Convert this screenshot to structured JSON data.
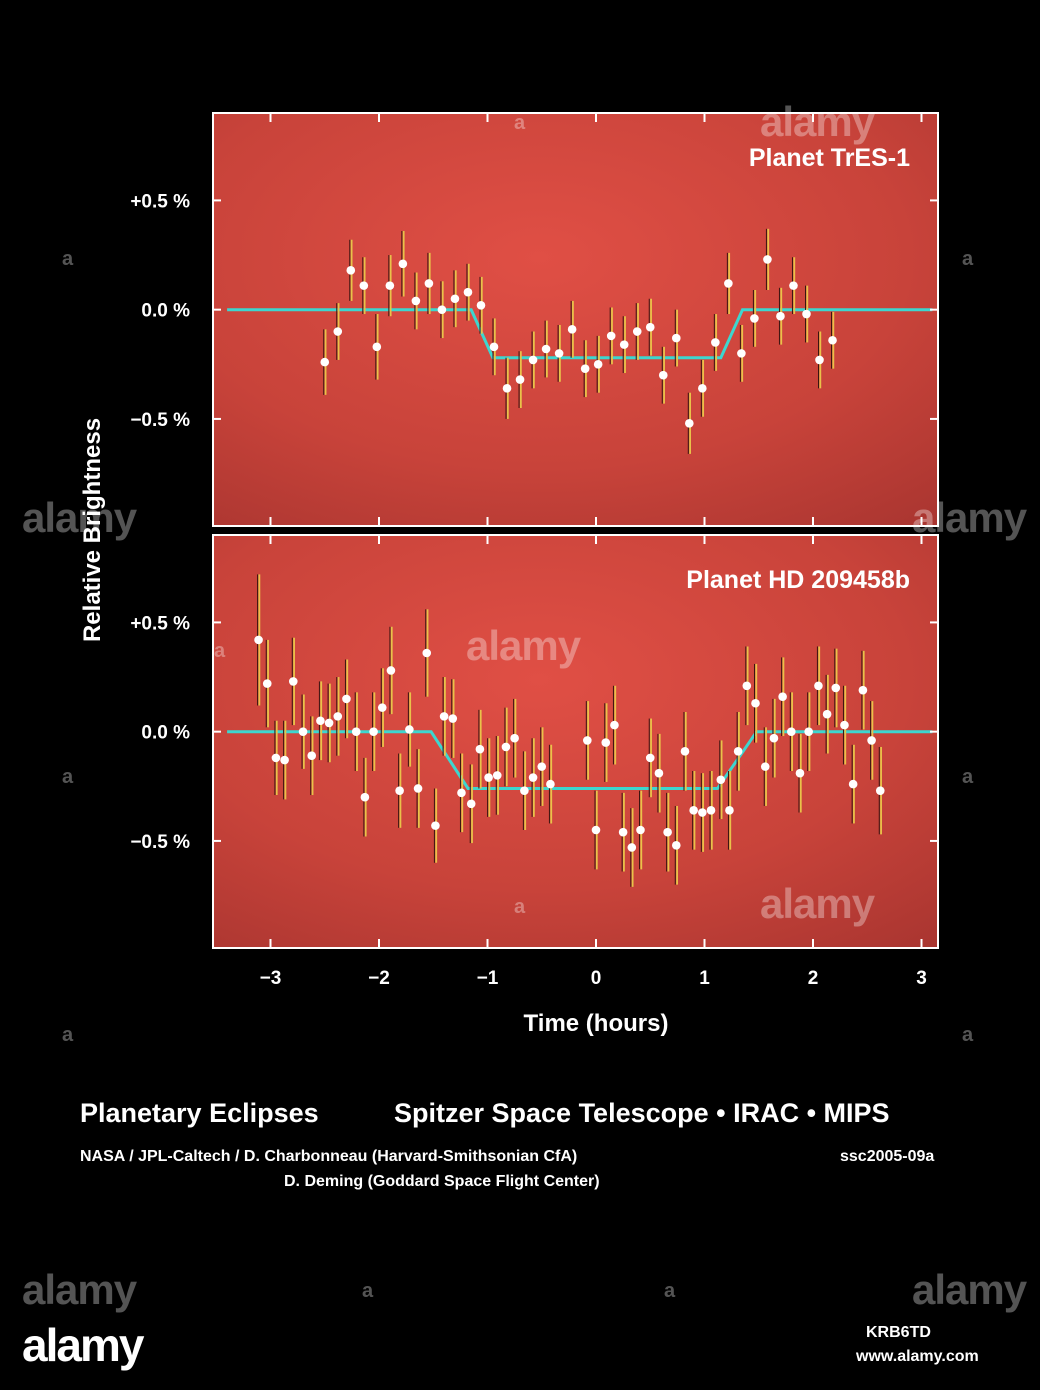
{
  "chart_data": {
    "type": "scatter",
    "ylabel": "Relative Brightness",
    "xlabel": "Time (hours)",
    "xlim": [
      -3.5,
      3.15
    ],
    "x_ticks": [
      -3,
      -2,
      -1,
      0,
      1,
      2,
      3
    ],
    "x_tick_labels": [
      "−3",
      "−2",
      "−1",
      "0",
      "1",
      "2",
      "3"
    ],
    "colors": {
      "background": "#000000",
      "panel": "#c8433a",
      "model": "#3dd6cf",
      "errorbar": "#e9c24a",
      "point": "#ffffff"
    },
    "panels": [
      {
        "title": "Planet TrES-1",
        "ylim": [
          -0.99,
          0.9
        ],
        "y_ticks": [
          0.5,
          0.0,
          -0.5
        ],
        "y_tick_labels": [
          "+0.5 %",
          "0.0 %",
          "−0.5 %"
        ],
        "model": {
          "x": [
            -3.4,
            -1.15,
            -0.95,
            1.15,
            1.35,
            3.1
          ],
          "y": [
            0.0,
            0.0,
            -0.22,
            -0.22,
            0.0,
            0.0
          ]
        },
        "points": [
          {
            "x": -2.5,
            "y": -0.24,
            "err": 0.15
          },
          {
            "x": -2.38,
            "y": -0.1,
            "err": 0.13
          },
          {
            "x": -2.26,
            "y": 0.18,
            "err": 0.14
          },
          {
            "x": -2.14,
            "y": 0.11,
            "err": 0.13
          },
          {
            "x": -2.02,
            "y": -0.17,
            "err": 0.15
          },
          {
            "x": -1.9,
            "y": 0.11,
            "err": 0.14
          },
          {
            "x": -1.78,
            "y": 0.21,
            "err": 0.15
          },
          {
            "x": -1.66,
            "y": 0.04,
            "err": 0.13
          },
          {
            "x": -1.54,
            "y": 0.12,
            "err": 0.14
          },
          {
            "x": -1.42,
            "y": 0.0,
            "err": 0.13
          },
          {
            "x": -1.3,
            "y": 0.05,
            "err": 0.13
          },
          {
            "x": -1.18,
            "y": 0.08,
            "err": 0.13
          },
          {
            "x": -1.06,
            "y": 0.02,
            "err": 0.13
          },
          {
            "x": -0.94,
            "y": -0.17,
            "err": 0.13
          },
          {
            "x": -0.82,
            "y": -0.36,
            "err": 0.14
          },
          {
            "x": -0.7,
            "y": -0.32,
            "err": 0.13
          },
          {
            "x": -0.58,
            "y": -0.23,
            "err": 0.13
          },
          {
            "x": -0.46,
            "y": -0.18,
            "err": 0.13
          },
          {
            "x": -0.34,
            "y": -0.2,
            "err": 0.13
          },
          {
            "x": -0.22,
            "y": -0.09,
            "err": 0.13
          },
          {
            "x": -0.1,
            "y": -0.27,
            "err": 0.13
          },
          {
            "x": 0.02,
            "y": -0.25,
            "err": 0.13
          },
          {
            "x": 0.14,
            "y": -0.12,
            "err": 0.13
          },
          {
            "x": 0.26,
            "y": -0.16,
            "err": 0.13
          },
          {
            "x": 0.38,
            "y": -0.1,
            "err": 0.13
          },
          {
            "x": 0.5,
            "y": -0.08,
            "err": 0.13
          },
          {
            "x": 0.62,
            "y": -0.3,
            "err": 0.13
          },
          {
            "x": 0.74,
            "y": -0.13,
            "err": 0.13
          },
          {
            "x": 0.86,
            "y": -0.52,
            "err": 0.14
          },
          {
            "x": 0.98,
            "y": -0.36,
            "err": 0.13
          },
          {
            "x": 1.1,
            "y": -0.15,
            "err": 0.13
          },
          {
            "x": 1.22,
            "y": 0.12,
            "err": 0.14
          },
          {
            "x": 1.34,
            "y": -0.2,
            "err": 0.13
          },
          {
            "x": 1.46,
            "y": -0.04,
            "err": 0.13
          },
          {
            "x": 1.58,
            "y": 0.23,
            "err": 0.14
          },
          {
            "x": 1.7,
            "y": -0.03,
            "err": 0.13
          },
          {
            "x": 1.82,
            "y": 0.11,
            "err": 0.13
          },
          {
            "x": 1.94,
            "y": -0.02,
            "err": 0.13
          },
          {
            "x": 2.06,
            "y": -0.23,
            "err": 0.13
          },
          {
            "x": 2.18,
            "y": -0.14,
            "err": 0.13
          }
        ]
      },
      {
        "title": "Planet HD 209458b",
        "ylim": [
          -0.99,
          0.9
        ],
        "y_ticks": [
          0.5,
          0.0,
          -0.5
        ],
        "y_tick_labels": [
          "+0.5 %",
          "0.0 %",
          "−0.5 %"
        ],
        "model": {
          "x": [
            -3.4,
            -1.52,
            -1.18,
            1.12,
            1.48,
            3.1
          ],
          "y": [
            0.0,
            0.0,
            -0.26,
            -0.26,
            0.0,
            0.0
          ]
        },
        "points": [
          {
            "x": -3.11,
            "y": 0.42,
            "err": 0.3
          },
          {
            "x": -3.03,
            "y": 0.22,
            "err": 0.2
          },
          {
            "x": -2.95,
            "y": -0.12,
            "err": 0.17
          },
          {
            "x": -2.87,
            "y": -0.13,
            "err": 0.18
          },
          {
            "x": -2.79,
            "y": 0.23,
            "err": 0.2
          },
          {
            "x": -2.7,
            "y": 0.0,
            "err": 0.17
          },
          {
            "x": -2.62,
            "y": -0.11,
            "err": 0.18
          },
          {
            "x": -2.54,
            "y": 0.05,
            "err": 0.18
          },
          {
            "x": -2.46,
            "y": 0.04,
            "err": 0.18
          },
          {
            "x": -2.38,
            "y": 0.07,
            "err": 0.18
          },
          {
            "x": -2.3,
            "y": 0.15,
            "err": 0.18
          },
          {
            "x": -2.21,
            "y": 0.0,
            "err": 0.18
          },
          {
            "x": -2.13,
            "y": -0.3,
            "err": 0.18
          },
          {
            "x": -2.05,
            "y": 0.0,
            "err": 0.18
          },
          {
            "x": -1.97,
            "y": 0.11,
            "err": 0.18
          },
          {
            "x": -1.89,
            "y": 0.28,
            "err": 0.2
          },
          {
            "x": -1.81,
            "y": -0.27,
            "err": 0.17
          },
          {
            "x": -1.72,
            "y": 0.01,
            "err": 0.17
          },
          {
            "x": -1.64,
            "y": -0.26,
            "err": 0.18
          },
          {
            "x": -1.56,
            "y": 0.36,
            "err": 0.2
          },
          {
            "x": -1.48,
            "y": -0.43,
            "err": 0.17
          },
          {
            "x": -1.4,
            "y": 0.07,
            "err": 0.18
          },
          {
            "x": -1.32,
            "y": 0.06,
            "err": 0.18
          },
          {
            "x": -1.24,
            "y": -0.28,
            "err": 0.18
          },
          {
            "x": -1.15,
            "y": -0.33,
            "err": 0.18
          },
          {
            "x": -1.07,
            "y": -0.08,
            "err": 0.18
          },
          {
            "x": -0.99,
            "y": -0.21,
            "err": 0.18
          },
          {
            "x": -0.91,
            "y": -0.2,
            "err": 0.18
          },
          {
            "x": -0.83,
            "y": -0.07,
            "err": 0.18
          },
          {
            "x": -0.75,
            "y": -0.03,
            "err": 0.18
          },
          {
            "x": -0.66,
            "y": -0.27,
            "err": 0.18
          },
          {
            "x": -0.58,
            "y": -0.21,
            "err": 0.18
          },
          {
            "x": -0.5,
            "y": -0.16,
            "err": 0.18
          },
          {
            "x": -0.42,
            "y": -0.24,
            "err": 0.18
          },
          {
            "x": -0.08,
            "y": -0.04,
            "err": 0.18
          },
          {
            "x": 0.0,
            "y": -0.45,
            "err": 0.18
          },
          {
            "x": 0.09,
            "y": -0.05,
            "err": 0.18
          },
          {
            "x": 0.17,
            "y": 0.03,
            "err": 0.18
          },
          {
            "x": 0.25,
            "y": -0.46,
            "err": 0.18
          },
          {
            "x": 0.33,
            "y": -0.53,
            "err": 0.18
          },
          {
            "x": 0.41,
            "y": -0.45,
            "err": 0.18
          },
          {
            "x": 0.5,
            "y": -0.12,
            "err": 0.18
          },
          {
            "x": 0.58,
            "y": -0.19,
            "err": 0.18
          },
          {
            "x": 0.66,
            "y": -0.46,
            "err": 0.18
          },
          {
            "x": 0.74,
            "y": -0.52,
            "err": 0.18
          },
          {
            "x": 0.82,
            "y": -0.09,
            "err": 0.18
          },
          {
            "x": 0.9,
            "y": -0.36,
            "err": 0.18
          },
          {
            "x": 0.98,
            "y": -0.37,
            "err": 0.18
          },
          {
            "x": 1.06,
            "y": -0.36,
            "err": 0.18
          },
          {
            "x": 1.15,
            "y": -0.22,
            "err": 0.18
          },
          {
            "x": 1.23,
            "y": -0.36,
            "err": 0.18
          },
          {
            "x": 1.31,
            "y": -0.09,
            "err": 0.18
          },
          {
            "x": 1.39,
            "y": 0.21,
            "err": 0.18
          },
          {
            "x": 1.47,
            "y": 0.13,
            "err": 0.18
          },
          {
            "x": 1.56,
            "y": -0.16,
            "err": 0.18
          },
          {
            "x": 1.64,
            "y": -0.03,
            "err": 0.18
          },
          {
            "x": 1.72,
            "y": 0.16,
            "err": 0.18
          },
          {
            "x": 1.8,
            "y": 0.0,
            "err": 0.18
          },
          {
            "x": 1.88,
            "y": -0.19,
            "err": 0.18
          },
          {
            "x": 1.96,
            "y": 0.0,
            "err": 0.18
          },
          {
            "x": 2.05,
            "y": 0.21,
            "err": 0.18
          },
          {
            "x": 2.13,
            "y": 0.08,
            "err": 0.18
          },
          {
            "x": 2.21,
            "y": 0.2,
            "err": 0.18
          },
          {
            "x": 2.29,
            "y": 0.03,
            "err": 0.18
          },
          {
            "x": 2.37,
            "y": -0.24,
            "err": 0.18
          },
          {
            "x": 2.46,
            "y": 0.19,
            "err": 0.18
          },
          {
            "x": 2.54,
            "y": -0.04,
            "err": 0.18
          },
          {
            "x": 2.62,
            "y": -0.27,
            "err": 0.2
          }
        ]
      }
    ]
  },
  "caption": {
    "title_left": "Planetary Eclipses",
    "title_right": "Spitzer Space Telescope • IRAC • MIPS",
    "credit_line1": "NASA / JPL-Caltech / D. Charbonneau (Harvard-Smithsonian CfA)",
    "credit_line2": "D. Deming (Goddard Space Flight Center)",
    "image_code": "ssc2005-09a"
  },
  "watermark": {
    "brand": "alamy",
    "small_mark": "a",
    "image_id": "KRB6TD",
    "url": "www.alamy.com"
  }
}
